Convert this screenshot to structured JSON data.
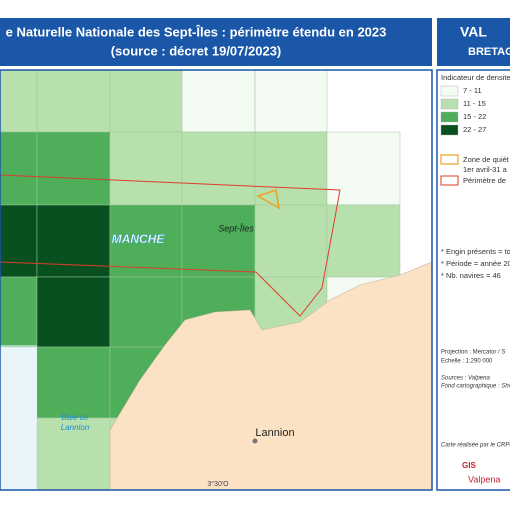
{
  "header": {
    "title_line1": "e Naturelle Nationale des Sept-Îles : périmètre étendu en 2023",
    "title_line2": "(source : décret 19/07/2023)"
  },
  "header_right": {
    "line1": "VAL",
    "line2": "BRETAG"
  },
  "legend": {
    "title": "Indicateur de densite",
    "classes": [
      {
        "label": "7 - 11",
        "color": "#f4fbf2"
      },
      {
        "label": "11 - 15",
        "color": "#b7e0ad"
      },
      {
        "label": "15 - 22",
        "color": "#4fae5a"
      },
      {
        "label": "22 - 27",
        "color": "#08501f"
      }
    ],
    "zone_line1": "Zone de quiét",
    "zone_line2": "1er avril-31 a",
    "perimeter": "Périmètre de"
  },
  "notes": [
    "* Engin présents = to",
    "* Période = année 20",
    "* Nb. navires = 46"
  ],
  "info": {
    "projection": "Projection : Mercator / S",
    "scale": "Echelle : 1:290 000",
    "sources": "Sources : Valpena",
    "basemap": "Fond cartographique : Sho",
    "credit": "Carte réalisée par le CRPM"
  },
  "map_labels": {
    "sea": "MANCHE",
    "islands": "Sept-Îles",
    "town": "Lannion",
    "bay_line1": "Baie de",
    "bay_line2": "Lannion",
    "longitude": "3°30'O"
  },
  "logo": {
    "line1": "GIS",
    "line2": "Valpena"
  }
}
